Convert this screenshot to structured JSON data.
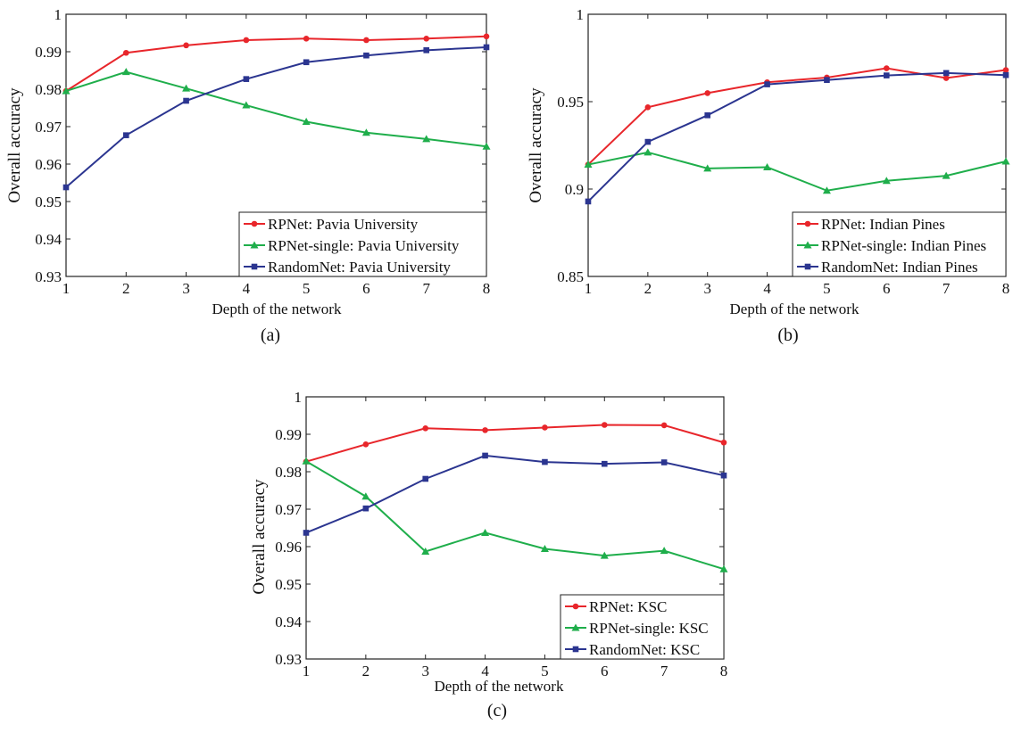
{
  "chart_data": [
    {
      "type": "line",
      "panel_label": "(a)",
      "xlabel": "Depth of the network",
      "ylabel": "Overall accuracy",
      "x": [
        1,
        2,
        3,
        4,
        5,
        6,
        7,
        8
      ],
      "xlim": [
        1,
        8
      ],
      "ylim": [
        0.93,
        1
      ],
      "yticks": [
        "0.93",
        "0.94",
        "0.95",
        "0.96",
        "0.97",
        "0.98",
        "0.99",
        "1"
      ],
      "xticks": [
        "1",
        "2",
        "3",
        "4",
        "5",
        "6",
        "7",
        "8"
      ],
      "grid": false,
      "legend_position": "bottom-right",
      "series": [
        {
          "name": "RPNet: Pavia University",
          "color": "#e8262b",
          "marker": "circle",
          "values": [
            0.9795,
            0.9897,
            0.9917,
            0.9931,
            0.9935,
            0.9931,
            0.9935,
            0.9941
          ]
        },
        {
          "name": "RPNet-single: Pavia University",
          "color": "#1fae4b",
          "marker": "triangle",
          "values": [
            0.9795,
            0.9846,
            0.9802,
            0.9757,
            0.9713,
            0.9684,
            0.9667,
            0.9647
          ]
        },
        {
          "name": "RandomNet: Pavia University",
          "color": "#2b3590",
          "marker": "square",
          "values": [
            0.9538,
            0.9677,
            0.9769,
            0.9827,
            0.9872,
            0.989,
            0.9904,
            0.9912
          ]
        }
      ]
    },
    {
      "type": "line",
      "panel_label": "(b)",
      "xlabel": "Depth of the network",
      "ylabel": "Overall accuracy",
      "x": [
        1,
        2,
        3,
        4,
        5,
        6,
        7,
        8
      ],
      "xlim": [
        1,
        8
      ],
      "ylim": [
        0.85,
        1
      ],
      "yticks": [
        "0.85",
        "0.9",
        "0.95",
        "1"
      ],
      "xticks": [
        "1",
        "2",
        "3",
        "4",
        "5",
        "6",
        "7",
        "8"
      ],
      "grid": false,
      "legend_position": "bottom-right",
      "series": [
        {
          "name": "RPNet: Indian Pines",
          "color": "#e8262b",
          "marker": "circle",
          "values": [
            0.914,
            0.9468,
            0.9549,
            0.9611,
            0.9638,
            0.9691,
            0.9635,
            0.9681
          ]
        },
        {
          "name": "RPNet-single: Indian Pines",
          "color": "#1fae4b",
          "marker": "triangle",
          "values": [
            0.914,
            0.921,
            0.9118,
            0.9125,
            0.8991,
            0.9047,
            0.9076,
            0.9158
          ]
        },
        {
          "name": "RandomNet: Indian Pines",
          "color": "#2b3590",
          "marker": "square",
          "values": [
            0.8929,
            0.927,
            0.9422,
            0.9599,
            0.9624,
            0.965,
            0.9664,
            0.9652
          ]
        }
      ]
    },
    {
      "type": "line",
      "panel_label": "(c)",
      "xlabel": "Depth of the network",
      "ylabel": "Overall accuracy",
      "x": [
        1,
        2,
        3,
        4,
        5,
        6,
        7,
        8
      ],
      "xlim": [
        1,
        8
      ],
      "ylim": [
        0.93,
        1
      ],
      "yticks": [
        "0.93",
        "0.94",
        "0.95",
        "0.96",
        "0.97",
        "0.98",
        "0.99",
        "1"
      ],
      "xticks": [
        "1",
        "2",
        "3",
        "4",
        "5",
        "6",
        "7",
        "8"
      ],
      "grid": false,
      "legend_position": "bottom-right",
      "series": [
        {
          "name": "RPNet: KSC",
          "color": "#e8262b",
          "marker": "circle",
          "values": [
            0.9827,
            0.9873,
            0.9916,
            0.9911,
            0.9918,
            0.9925,
            0.9924,
            0.9878
          ]
        },
        {
          "name": "RPNet-single: KSC",
          "color": "#1fae4b",
          "marker": "triangle",
          "values": [
            0.9828,
            0.9734,
            0.9587,
            0.9637,
            0.9594,
            0.9576,
            0.9589,
            0.954
          ]
        },
        {
          "name": "RandomNet: KSC",
          "color": "#2b3590",
          "marker": "square",
          "values": [
            0.9637,
            0.9702,
            0.9781,
            0.9843,
            0.9826,
            0.9821,
            0.9825,
            0.979
          ]
        }
      ]
    }
  ]
}
